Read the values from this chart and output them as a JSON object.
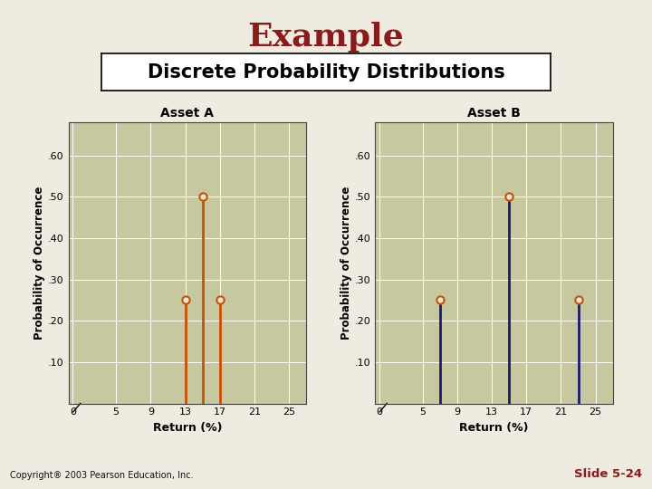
{
  "title": "Example",
  "subtitle": "Discrete Probability Distributions",
  "bg_color": "#f0ebe0",
  "plot_bg_color": "#c8c8a0",
  "title_color": "#8b1a1a",
  "subtitle_color": "#000000",
  "copyright": "Copyright® 2003 Pearson Education, Inc.",
  "slide_num": "Slide 5-24",
  "asset_a": {
    "title": "Asset A",
    "x": [
      13,
      15,
      17
    ],
    "y": [
      0.25,
      0.5,
      0.25
    ],
    "stem_color": "#c85000",
    "marker_facecolor": "#f0ebe0",
    "marker_edgecolor": "#c85000"
  },
  "asset_b": {
    "title": "Asset B",
    "x": [
      7,
      15,
      23
    ],
    "y": [
      0.25,
      0.5,
      0.25
    ],
    "stem_color": "#1a1a6e",
    "marker_facecolor": "#f0ebe0",
    "marker_edgecolor": "#c85000"
  },
  "xticks": [
    0,
    5,
    9,
    13,
    17,
    21,
    25
  ],
  "ytick_vals": [
    0.1,
    0.2,
    0.3,
    0.4,
    0.5,
    0.6
  ],
  "ytick_labels": [
    ".10",
    ".20",
    ".30",
    ".40",
    ".50",
    ".60"
  ],
  "xlim": [
    -0.5,
    27
  ],
  "ylim": [
    0,
    0.68
  ],
  "xlabel": "Return (%)",
  "ylabel": "Probability of Occurrence",
  "grid_color": "#ffffff",
  "title_fontsize": 26,
  "subtitle_fontsize": 15,
  "axis_title_fontsize": 10,
  "tick_fontsize": 8,
  "label_fontsize": 9
}
